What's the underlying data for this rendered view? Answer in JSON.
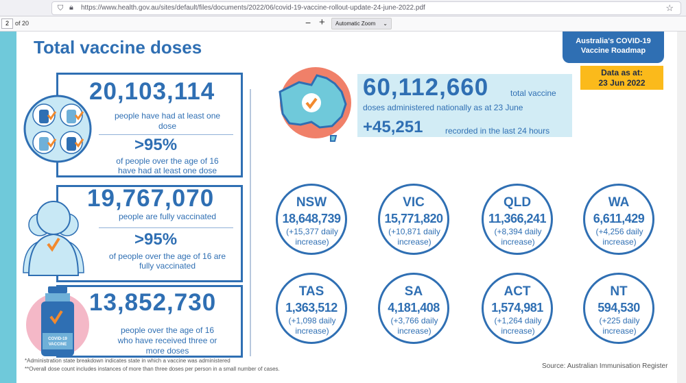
{
  "browser": {
    "url": "https://www.health.gov.au/sites/default/files/documents/2022/06/covid-19-vaccine-rollout-update-24-june-2022.pdf",
    "page_number": "2",
    "page_of": "of 20",
    "zoom_out": "−",
    "zoom_in": "+",
    "zoom_label": "Automatic Zoom"
  },
  "doc": {
    "title": "Total vaccine doses",
    "roadmap_line1": "Australia's COVID-19",
    "roadmap_line2": "Vaccine Roadmap",
    "data_asat_line1": "Data as at:",
    "data_asat_line2": "23 Jun 2022",
    "box1": {
      "number": "20,103,114",
      "text1": "people have had at least one",
      "text2": "dose",
      "pct": ">95%",
      "pct_text1": "of people over the age of 16",
      "pct_text2": "have had at least one dose"
    },
    "box2": {
      "number": "19,767,070",
      "text1": "people are fully vaccinated",
      "pct": ">95%",
      "pct_text1": "of people over the age of 16 are",
      "pct_text2": "fully vaccinated"
    },
    "box3": {
      "number": "13,852,730",
      "text1": "people over the age of 16",
      "text2": "who have received three or",
      "text3": "more doses",
      "vial_label1": "COVID-19",
      "vial_label2": "VACCINE"
    },
    "total": {
      "number": "60,112,660",
      "label": "total vaccine",
      "subtext": "doses administered nationally as at 23 June",
      "increase": "+45,251",
      "increase_label": "recorded in the last 24 hours"
    },
    "states": [
      {
        "name": "NSW",
        "value": "18,648,739",
        "inc1": "(+15,377 daily",
        "inc2": "increase)"
      },
      {
        "name": "VIC",
        "value": "15,771,820",
        "inc1": "(+10,871 daily",
        "inc2": "increase)"
      },
      {
        "name": "QLD",
        "value": "11,366,241",
        "inc1": "(+8,394 daily",
        "inc2": "increase)"
      },
      {
        "name": "WA",
        "value": "6,611,429",
        "inc1": "(+4,256 daily",
        "inc2": "increase)"
      },
      {
        "name": "TAS",
        "value": "1,363,512",
        "inc1": "(+1,098 daily",
        "inc2": "increase)"
      },
      {
        "name": "SA",
        "value": "4,181,408",
        "inc1": "(+3,766 daily",
        "inc2": "increase)"
      },
      {
        "name": "ACT",
        "value": "1,574,981",
        "inc1": "(+1,264 daily",
        "inc2": "increase)"
      },
      {
        "name": "NT",
        "value": "594,530",
        "inc1": "(+225 daily",
        "inc2": "increase)"
      }
    ],
    "footnote1": "*Administration state breakdown indicates state in which a vaccine was administered",
    "footnote2": "**Overall dose count includes instances of more than three doses per person in a small number of cases.",
    "source": "Source: Australian Immunisation Register"
  },
  "colors": {
    "brand_blue": "#2f6fb3",
    "accent_yellow": "#fbba1b",
    "check_orange": "#f28a2e",
    "panel_light_blue": "#d2ecf5"
  }
}
